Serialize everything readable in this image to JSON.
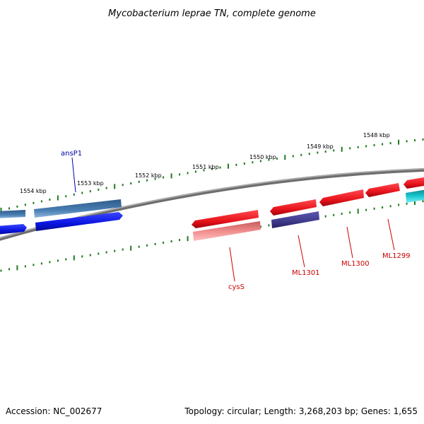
{
  "title": "Mycobacterium leprae TN, complete genome",
  "footer": {
    "accession": "Accession: NC_002677",
    "topology": "Topology: circular; Length: 3,268,203 bp; Genes: 1,655"
  },
  "ruler": {
    "tick_labels": [
      "1554 kbp",
      "1553 kbp",
      "1552 kbp",
      "1551 kbp",
      "1550 kbp",
      "1549 kbp",
      "1548 kbp"
    ]
  },
  "gene_labels": [
    "ansP1",
    "cysS",
    "ML1301",
    "ML1300",
    "ML1299"
  ],
  "colors": {
    "tick": "#1e7a1e",
    "backbone": "#888888",
    "red": "#e8141c",
    "pink": "#f08c8c",
    "navy": "#3e3a8a",
    "blue": "#0a14e0",
    "steel": "#4a7fb4",
    "cyan": "#18c8d0",
    "label_red": "#cc0000",
    "label_blue": "#0000aa"
  }
}
